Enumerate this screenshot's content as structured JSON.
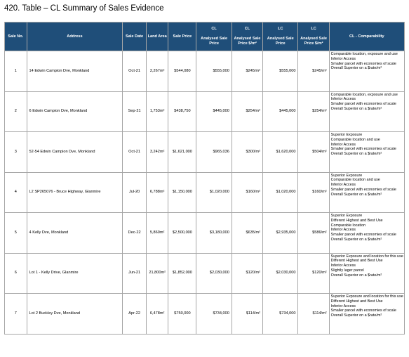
{
  "title": "420. Table – CL Summary of Sales Evidence",
  "headers": {
    "sale_no": "Sale No.",
    "address": "Address",
    "sale_date": "Sale Date",
    "land_area": "Land Area",
    "sale_price": "Sale Price",
    "cl_price_1": "CL",
    "cl_price_2": "Analysed Sale Price",
    "cl_rate_1": "CL",
    "cl_rate_2": "Analysed Sale Price $/m²",
    "lc_price_1": "LC",
    "lc_price_2": "Analysed Sale Price",
    "lc_rate_1": "LC",
    "lc_rate_2": "Analysed Sale Price $/m²",
    "comparability": "CL - Comparability"
  },
  "rows": [
    {
      "sale_no": "1",
      "address": "14 Edwin Campion Dve, Monkland",
      "sale_date": "Oct-21",
      "land_area": "2,267m²",
      "sale_price": "$544,080",
      "cl_price": "$555,000",
      "cl_rate": "$245/m²",
      "lc_price": "$555,000",
      "lc_rate": "$245/m²",
      "comparability": [
        "Comparable location, exposure and use",
        "Inferior Access",
        "Smaller parcel with economies of scale",
        "Overall Superior on a $rate/m²"
      ]
    },
    {
      "sale_no": "2",
      "address": "6 Edwin Campion Dve, Monkland",
      "sale_date": "Sep-21",
      "land_area": "1,753m²",
      "sale_price": "$438,750",
      "cl_price": "$445,000",
      "cl_rate": "$254/m²",
      "lc_price": "$445,000",
      "lc_rate": "$254/m²",
      "comparability": [
        "Comparable location, exposure and use",
        "Inferior Access",
        "Smaller parcel with economies of scale",
        "Overall Superior on a $rate/m²"
      ]
    },
    {
      "sale_no": "3",
      "address": "52-54 Edwin Campion Dve, Monkland",
      "sale_date": "Oct-21",
      "land_area": "3,242m²",
      "sale_price": "$1,621,000",
      "cl_price": "$965,036",
      "cl_rate": "$300/m²",
      "lc_price": "$1,620,000",
      "lc_rate": "$504/m²",
      "comparability": [
        "Superior Exposure",
        "Comparable location and use",
        "Inferior Access",
        "Smaller parcel with economies of scale",
        "Overall Superior on a $rate/m²"
      ]
    },
    {
      "sale_no": "4",
      "address": "L2 SP265076 - Bruce Highway, Glanmire",
      "sale_date": "Jul-20",
      "land_area": "6,788m²",
      "sale_price": "$1,150,000",
      "cl_price": "$1,020,000",
      "cl_rate": "$160/m²",
      "lc_price": "$1,020,000",
      "lc_rate": "$160/m²",
      "comparability": [
        "Superior Exposure",
        "Comparable location and use",
        "Inferior Access",
        "Smaller parcel with economies of scale",
        "Overall Superior on a $rate/m²"
      ]
    },
    {
      "sale_no": "5",
      "address": "4 Kelly Dve, Monkland",
      "sale_date": "Dec-22",
      "land_area": "5,860m²",
      "sale_price": "$2,500,000",
      "cl_price": "$3,180,000",
      "cl_rate": "$635/m²",
      "lc_price": "$2,935,000",
      "lc_rate": "$586/m²",
      "comparability": [
        "Superior Exposure",
        "Different Highest and Best Use",
        "Comparable location",
        "Inferior Access",
        "Smaller parcel with economies of scale",
        "Overall Superior on a $rate/m²"
      ]
    },
    {
      "sale_no": "6",
      "address": "Lot 1 - Kelly Drive, Glanmire",
      "sale_date": "Jun-21",
      "land_area": "21,800m²",
      "sale_price": "$1,852,000",
      "cl_price": "$2,030,000",
      "cl_rate": "$120/m²",
      "lc_price": "$2,030,000",
      "lc_rate": "$120/m²",
      "comparability": [
        "Superior Exposure and location for this use",
        "Different Highest and Best Use",
        "Inferior Access",
        "Slightly lager parcel",
        "Overall Superior on a $rate/m²"
      ]
    },
    {
      "sale_no": "7",
      "address": "Lot 2 Buckley Dve, Monkland",
      "sale_date": "Apr-22",
      "land_area": "6,478m²",
      "sale_price": "$750,000",
      "cl_price": "$734,000",
      "cl_rate": "$114/m²",
      "lc_price": "$734,000",
      "lc_rate": "$114/m²",
      "comparability": [
        "Superior Exposure and location for this use",
        "Different Highest and Best Use",
        "Inferior Access",
        "Smaller parcel with economies of scale",
        "Overall Superior on a $rate/m²"
      ]
    }
  ]
}
